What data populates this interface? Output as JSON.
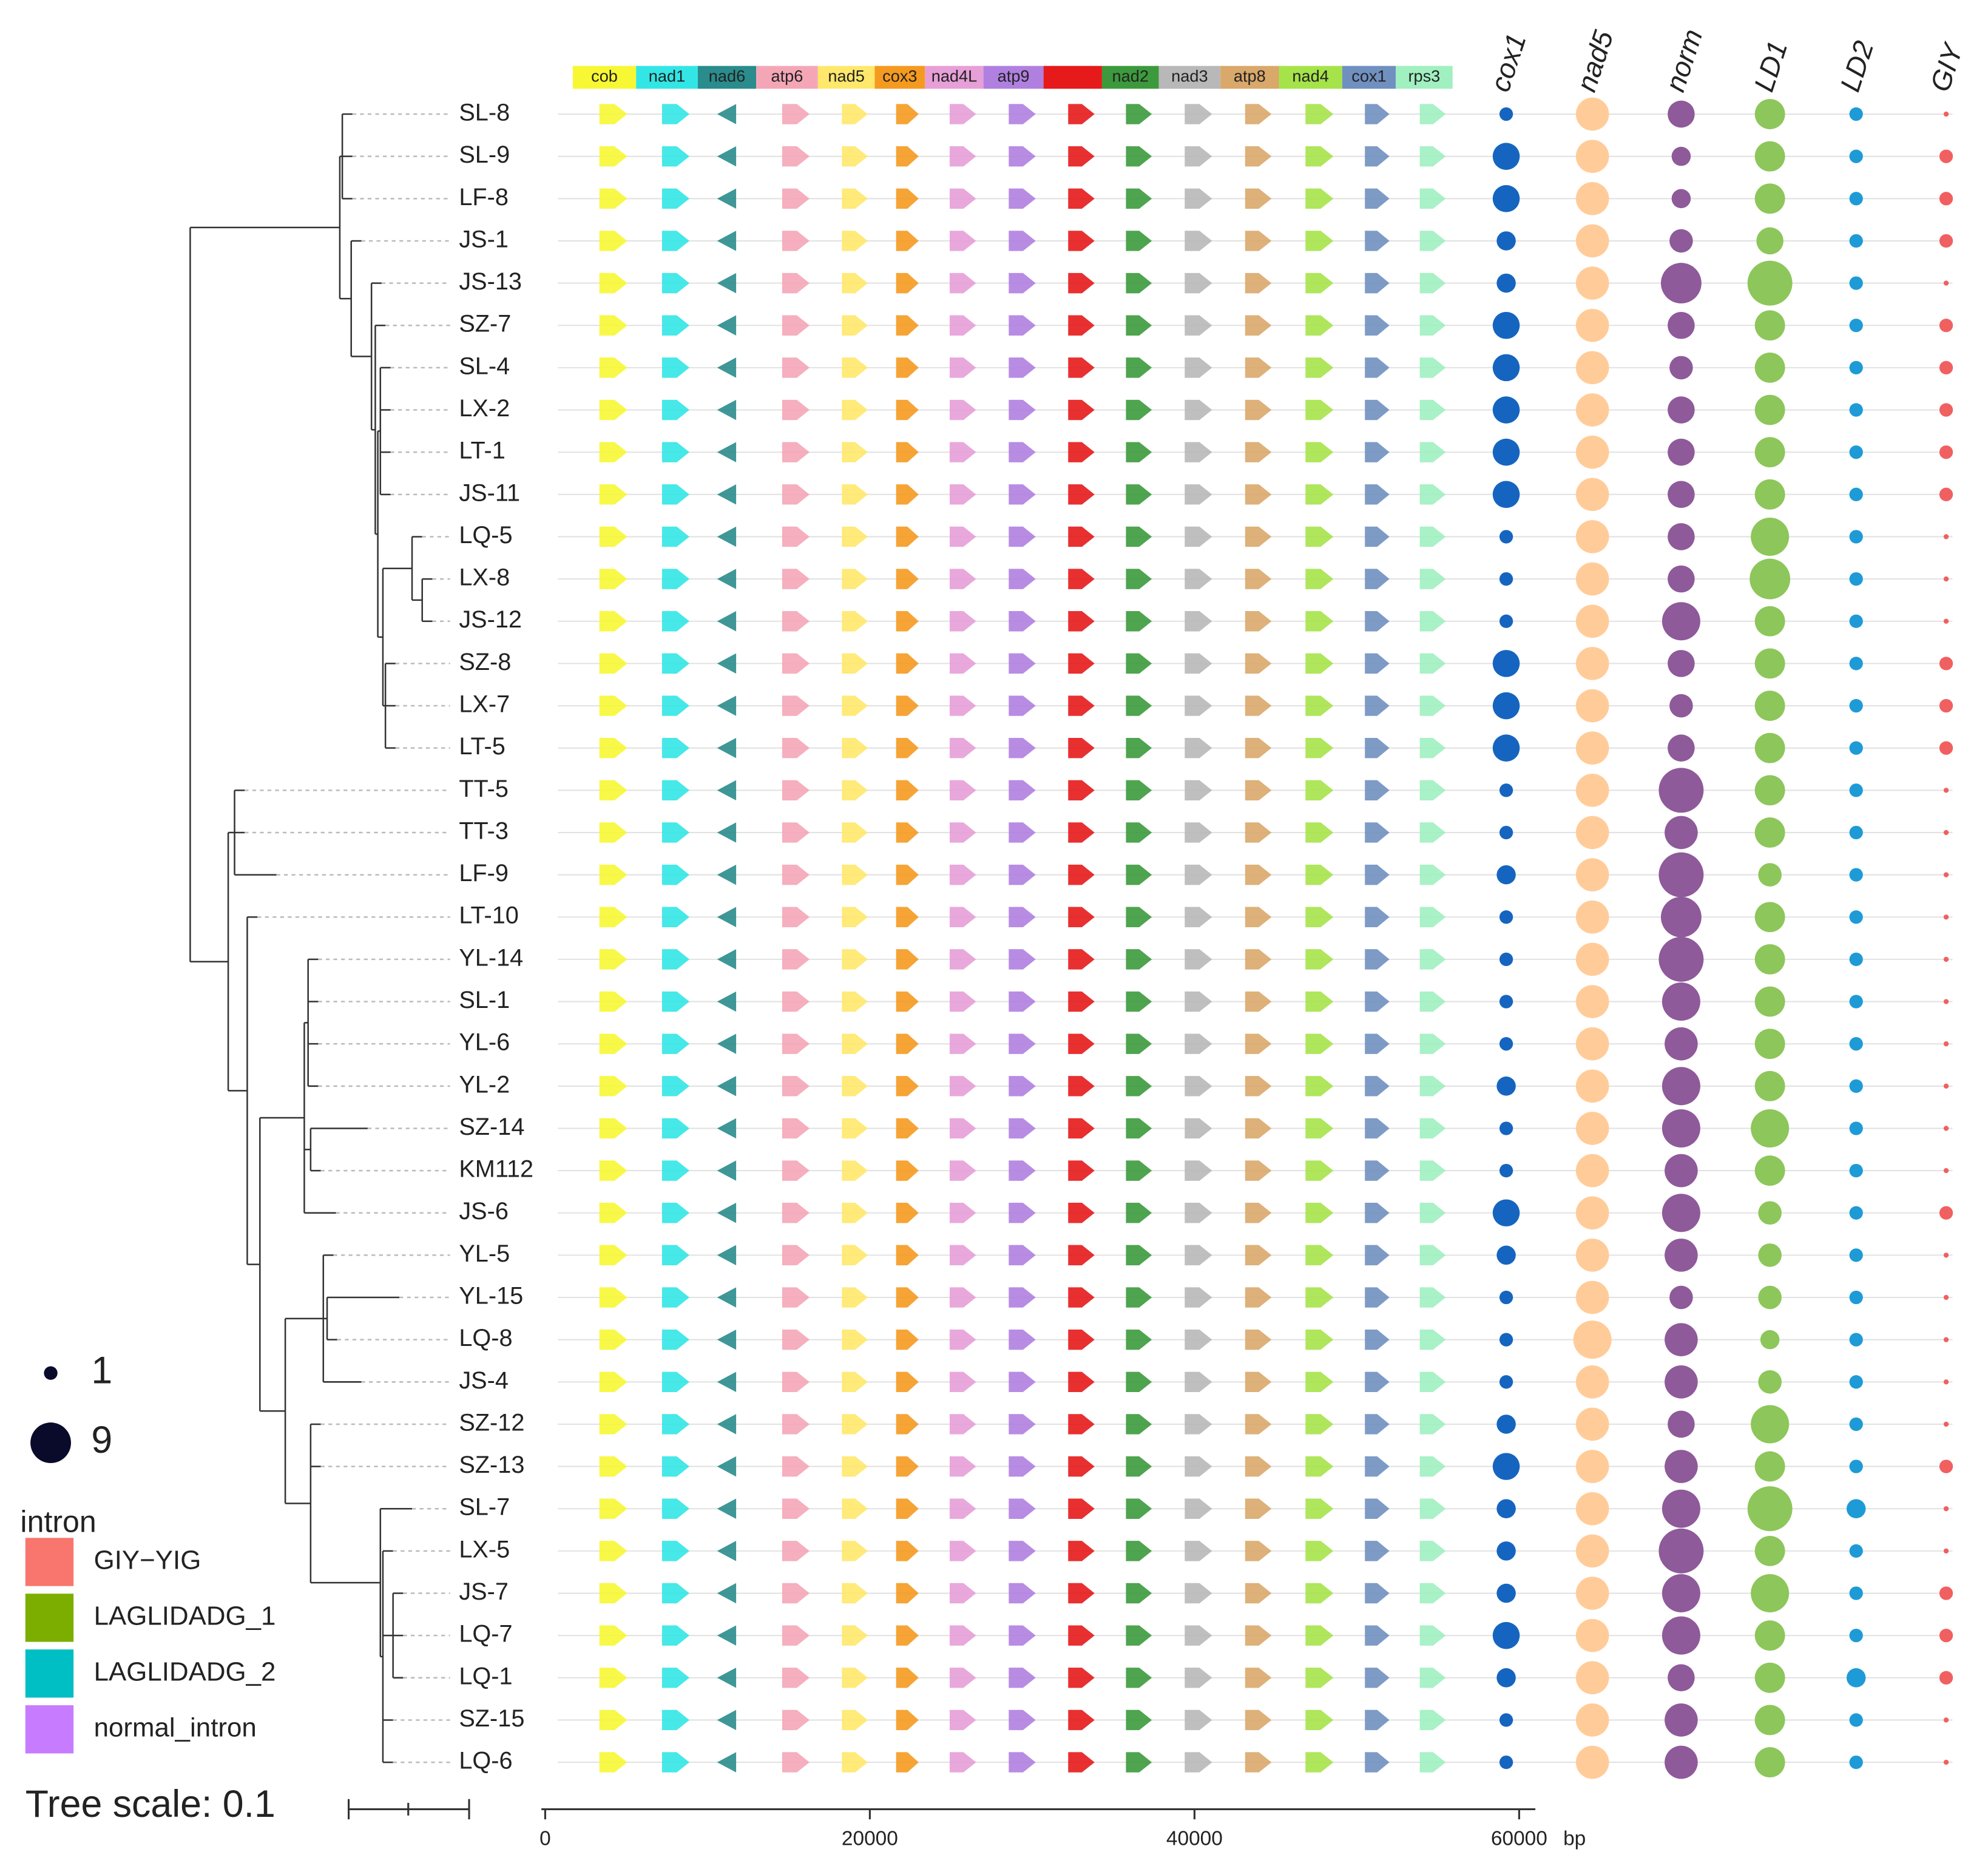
{
  "gene_bar": {
    "labels": [
      "cob",
      "nad1",
      "nad6",
      "atp6",
      "nad5",
      "cox3",
      "nad4L",
      "atp9",
      null,
      "nad2",
      "nad3",
      "atp8",
      "nad4",
      "cox1",
      "rps3"
    ],
    "starts": [
      1700,
      5600,
      9400,
      13000,
      16800,
      20300,
      23400,
      27000,
      30700,
      34300,
      37800,
      41600,
      45200,
      49100,
      52400
    ],
    "ends": [
      5600,
      9400,
      13000,
      16800,
      20300,
      23400,
      27000,
      30700,
      34300,
      37800,
      41600,
      45200,
      49100,
      52400,
      55900
    ],
    "colors": [
      "#f7f734",
      "#33e6e6",
      "#2a8c8c",
      "#f4a6b7",
      "#ffe86b",
      "#f59a20",
      "#e79fd8",
      "#b080e0",
      "#e6191b",
      "#3c9a3c",
      "#b8b8b8",
      "#d9a86a",
      "#a6e34a",
      "#7090c0",
      "#a0f0c0"
    ]
  },
  "strains": [
    "SL-8",
    "SL-9",
    "LF-8",
    "JS-1",
    "JS-13",
    "SZ-7",
    "SL-4",
    "LX-2",
    "LT-1",
    "JS-11",
    "LQ-5",
    "LX-8",
    "JS-12",
    "SZ-8",
    "LX-7",
    "LT-5",
    "TT-5",
    "TT-3",
    "LF-9",
    "LT-10",
    "YL-14",
    "SL-1",
    "YL-6",
    "YL-2",
    "SZ-14",
    "KM112",
    "JS-6",
    "YL-5",
    "YL-15",
    "LQ-8",
    "JS-4",
    "SZ-12",
    "SZ-13",
    "SL-7",
    "LX-5",
    "JS-7",
    "LQ-7",
    "LQ-1",
    "SZ-15",
    "LQ-6"
  ],
  "columns": [
    {
      "name": "cox1",
      "color": "#1565c0",
      "values": [
        1,
        4,
        4,
        2,
        2,
        4,
        4,
        4,
        4,
        4,
        1,
        1,
        1,
        4,
        4,
        4,
        1,
        1,
        2,
        1,
        1,
        1,
        1,
        2,
        1,
        1,
        4,
        2,
        1,
        1,
        1,
        2,
        4,
        2,
        2,
        2,
        4,
        2,
        1,
        1
      ]
    },
    {
      "name": "nad5",
      "color": "#ffcc99",
      "values": [
        6,
        6,
        6,
        6,
        6,
        6,
        6,
        6,
        6,
        6,
        6,
        6,
        6,
        6,
        6,
        6,
        6,
        6,
        6,
        6,
        6,
        6,
        6,
        6,
        6,
        6,
        6,
        6,
        6,
        8,
        6,
        6,
        6,
        6,
        6,
        6,
        6,
        6,
        6,
        6
      ]
    },
    {
      "name": "norm",
      "color": "#8e5a9a",
      "values": [
        4,
        2,
        2,
        3,
        9,
        4,
        3,
        4,
        4,
        4,
        4,
        4,
        8,
        4,
        3,
        4,
        11,
        6,
        11,
        9,
        11,
        8,
        6,
        8,
        8,
        6,
        8,
        6,
        3,
        6,
        6,
        4,
        6,
        8,
        11,
        8,
        8,
        4,
        6,
        6
      ]
    },
    {
      "name": "LD1",
      "color": "#8dc65a",
      "values": [
        5,
        5,
        5,
        4,
        11,
        5,
        5,
        5,
        5,
        5,
        8,
        9,
        5,
        5,
        5,
        5,
        5,
        5,
        3,
        5,
        5,
        5,
        5,
        5,
        8,
        5,
        3,
        3,
        3,
        2,
        3,
        8,
        5,
        11,
        5,
        8,
        5,
        5,
        5,
        5
      ]
    },
    {
      "name": "LD2",
      "color": "#1e9bd7",
      "values": [
        1,
        1,
        1,
        1,
        1,
        1,
        1,
        1,
        1,
        1,
        1,
        1,
        1,
        1,
        1,
        1,
        1,
        1,
        1,
        1,
        1,
        1,
        1,
        1,
        1,
        1,
        1,
        1,
        1,
        1,
        1,
        1,
        1,
        2,
        1,
        1,
        1,
        2,
        1,
        1
      ]
    },
    {
      "name": "GIY",
      "color": "#f06060",
      "values": [
        0,
        1,
        1,
        1,
        0,
        1,
        1,
        1,
        1,
        1,
        0,
        0,
        0,
        1,
        1,
        1,
        0,
        0,
        0,
        0,
        0,
        0,
        0,
        0,
        0,
        0,
        1,
        0,
        0,
        0,
        0,
        0,
        1,
        0,
        0,
        1,
        1,
        1,
        0,
        0
      ]
    }
  ],
  "size_legend": {
    "values": [
      1,
      9
    ],
    "color": "#0a0a2a"
  },
  "intron_legend": {
    "title": "intron",
    "items": [
      {
        "label": "GIY−YIG",
        "color": "#f8766d"
      },
      {
        "label": "LAGLIDADG_1",
        "color": "#7cae00"
      },
      {
        "label": "LAGLIDADG_2",
        "color": "#00bfc4"
      },
      {
        "label": "normal_intron",
        "color": "#c77cff"
      }
    ]
  },
  "axis": {
    "xlim": [
      0,
      61000
    ],
    "xticks": [
      0,
      20000,
      40000,
      60000
    ],
    "unit": "bp"
  },
  "tree_scale": "Tree scale: 0.1"
}
